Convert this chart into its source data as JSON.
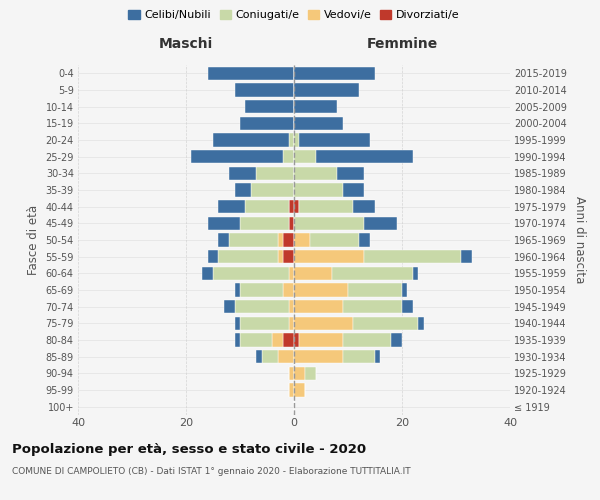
{
  "age_groups": [
    "100+",
    "95-99",
    "90-94",
    "85-89",
    "80-84",
    "75-79",
    "70-74",
    "65-69",
    "60-64",
    "55-59",
    "50-54",
    "45-49",
    "40-44",
    "35-39",
    "30-34",
    "25-29",
    "20-24",
    "15-19",
    "10-14",
    "5-9",
    "0-4"
  ],
  "birth_years": [
    "≤ 1919",
    "1920-1924",
    "1925-1929",
    "1930-1934",
    "1935-1939",
    "1940-1944",
    "1945-1949",
    "1950-1954",
    "1955-1959",
    "1960-1964",
    "1965-1969",
    "1970-1974",
    "1975-1979",
    "1980-1984",
    "1985-1989",
    "1990-1994",
    "1995-1999",
    "2000-2004",
    "2005-2009",
    "2010-2014",
    "2015-2019"
  ],
  "colors": {
    "celibi": "#3d6ea0",
    "coniugati": "#c8d9a8",
    "vedovi": "#f5c87a",
    "divorziati": "#c0392b"
  },
  "males": {
    "celibi": [
      0,
      0,
      0,
      1,
      1,
      1,
      2,
      1,
      2,
      2,
      2,
      6,
      5,
      3,
      5,
      17,
      14,
      10,
      9,
      11,
      16
    ],
    "coniugati": [
      0,
      0,
      0,
      3,
      6,
      9,
      10,
      8,
      14,
      11,
      9,
      9,
      8,
      8,
      7,
      2,
      1,
      0,
      0,
      0,
      0
    ],
    "vedovi": [
      0,
      1,
      1,
      3,
      2,
      1,
      1,
      2,
      1,
      1,
      1,
      0,
      0,
      0,
      0,
      0,
      0,
      0,
      0,
      0,
      0
    ],
    "divorziati": [
      0,
      0,
      0,
      0,
      2,
      0,
      0,
      0,
      0,
      2,
      2,
      1,
      1,
      0,
      0,
      0,
      0,
      0,
      0,
      0,
      0
    ]
  },
  "females": {
    "celibi": [
      0,
      0,
      0,
      1,
      2,
      1,
      2,
      1,
      1,
      2,
      2,
      6,
      4,
      4,
      5,
      18,
      13,
      9,
      8,
      12,
      15
    ],
    "coniugati": [
      0,
      0,
      2,
      6,
      9,
      12,
      11,
      10,
      15,
      18,
      9,
      13,
      10,
      9,
      8,
      4,
      1,
      0,
      0,
      0,
      0
    ],
    "vedovi": [
      0,
      2,
      2,
      9,
      8,
      11,
      9,
      10,
      7,
      13,
      3,
      0,
      0,
      0,
      0,
      0,
      0,
      0,
      0,
      0,
      0
    ],
    "divorziati": [
      0,
      0,
      0,
      0,
      1,
      0,
      0,
      0,
      0,
      0,
      0,
      0,
      1,
      0,
      0,
      0,
      0,
      0,
      0,
      0,
      0
    ]
  },
  "title": "Popolazione per età, sesso e stato civile - 2020",
  "subtitle": "COMUNE DI CAMPOLIETO (CB) - Dati ISTAT 1° gennaio 2020 - Elaborazione TUTTITALIA.IT",
  "xlabel_left": "Maschi",
  "xlabel_right": "Femmine",
  "ylabel_left": "Fasce di età",
  "ylabel_right": "Anni di nascita",
  "xlim": 40,
  "legend_labels": [
    "Celibi/Nubili",
    "Coniugati/e",
    "Vedovi/e",
    "Divorziati/e"
  ],
  "background_color": "#f5f5f5"
}
